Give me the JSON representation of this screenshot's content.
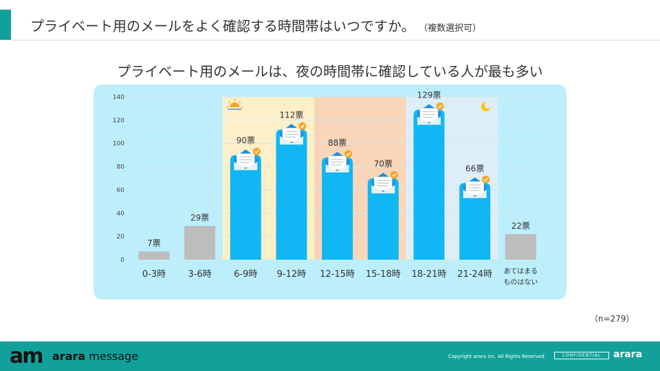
{
  "page": {
    "title": "プライベート用のメールをよく確認する時間帯はいつですか。",
    "title_note": "（複数選択可）",
    "sample_size": "（n=279）"
  },
  "chart_data": {
    "type": "bar",
    "title": "プライベート用のメールは、夜の時間帯に確認している人が最も多い",
    "categories": [
      "0-3時",
      "3-6時",
      "6-9時",
      "9-12時",
      "12-15時",
      "15-18時",
      "18-21時",
      "21-24時",
      "あてはまる\nものはない"
    ],
    "values": [
      7,
      29,
      90,
      112,
      88,
      70,
      129,
      66,
      22
    ],
    "value_labels": [
      "7票",
      "29票",
      "90票",
      "112票",
      "88票",
      "70票",
      "129票",
      "66票",
      "22票"
    ],
    "highlighted": [
      false,
      false,
      true,
      true,
      true,
      true,
      true,
      true,
      false
    ],
    "y_ticks": [
      "0",
      "20",
      "40",
      "60",
      "80",
      "100",
      "120",
      "140"
    ],
    "ylim": [
      0,
      140
    ],
    "grid": true,
    "bands": [
      {
        "from": 2,
        "to": 3,
        "color": "#fdf0c8",
        "icon": "sun-icon"
      },
      {
        "from": 4,
        "to": 5,
        "color": "#f9d5b9",
        "icon": ""
      },
      {
        "from": 6,
        "to": 7,
        "color": "#deeef9",
        "icon": "moon-icon"
      }
    ],
    "colors": {
      "highlight": "#10b7f4",
      "other": "#bdbdbd",
      "panel": "#bdeefb",
      "grid": "#cfe9f2"
    }
  },
  "footer": {
    "logo_mark": "am",
    "brand_bold": "arara",
    "brand_light": " message",
    "copyright": "Copyright arara inc. All Rights Reserved.",
    "confidential": "CONFIDENTIAL",
    "brand_right": "arara"
  }
}
